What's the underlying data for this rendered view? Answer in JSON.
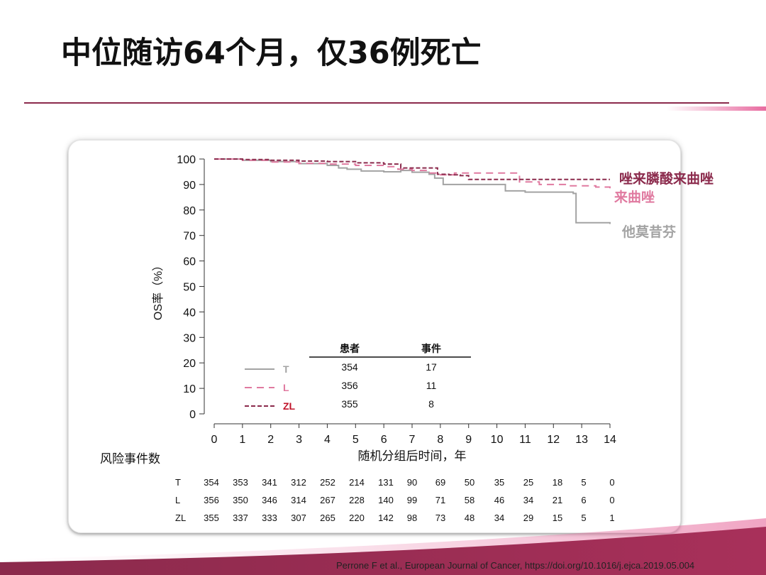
{
  "slide": {
    "title": "中位随访64个月，仅36例死亡",
    "citation": "Perrone F et al., European Journal of Cancer, https://doi.org/10.1016/j.ejca.2019.05.004"
  },
  "colors": {
    "T": "#a3a3a3",
    "L": "#e07aa0",
    "ZL": "#8b2a4c",
    "accent": "#8b2a4c",
    "zl_legend_text": "#c0142a"
  },
  "chart_data": {
    "type": "line",
    "xlabel": "随机分组后时间，年",
    "ylabel": "OS率（%）",
    "xlim": [
      0,
      14
    ],
    "ylim": [
      0,
      100
    ],
    "x_ticks": [
      "0",
      "1",
      "2",
      "3",
      "4",
      "5",
      "6",
      "7",
      "8",
      "9",
      "10",
      "11",
      "12",
      "13",
      "14"
    ],
    "y_ticks": [
      "0",
      "10",
      "20",
      "30",
      "40",
      "50",
      "60",
      "70",
      "80",
      "90",
      "100"
    ],
    "grid": false,
    "series": [
      {
        "key": "T",
        "name": "T",
        "style": "solid",
        "end_label": "他莫昔芬",
        "points": [
          [
            0,
            100
          ],
          [
            1,
            99.5
          ],
          [
            2,
            99
          ],
          [
            3,
            98.2
          ],
          [
            4,
            97.5
          ],
          [
            4.4,
            96.5
          ],
          [
            4.7,
            96
          ],
          [
            5.2,
            95.3
          ],
          [
            6,
            95
          ],
          [
            6.6,
            95.5
          ],
          [
            7,
            94.8
          ],
          [
            7.6,
            94
          ],
          [
            7.8,
            92.5
          ],
          [
            8.1,
            90
          ],
          [
            9,
            90
          ],
          [
            10.3,
            89.5
          ],
          [
            10.3,
            87.5
          ],
          [
            11,
            87
          ],
          [
            12.7,
            86.5
          ],
          [
            12.8,
            75
          ],
          [
            14,
            74.5
          ]
        ]
      },
      {
        "key": "L",
        "name": "L",
        "style": "dashed",
        "end_label": "来曲唑",
        "points": [
          [
            0,
            100
          ],
          [
            1,
            99.5
          ],
          [
            2,
            98.8
          ],
          [
            3,
            98.3
          ],
          [
            4,
            98
          ],
          [
            5,
            97.5
          ],
          [
            6,
            97
          ],
          [
            6.5,
            96
          ],
          [
            7,
            95.5
          ],
          [
            7.6,
            94.5
          ],
          [
            8,
            93.8
          ],
          [
            8.5,
            94.5
          ],
          [
            9.5,
            94.5
          ],
          [
            10.8,
            94
          ],
          [
            10.8,
            91
          ],
          [
            11.5,
            90
          ],
          [
            12.5,
            89.5
          ],
          [
            13.5,
            89
          ],
          [
            14,
            88.5
          ]
        ]
      },
      {
        "key": "ZL",
        "name": "ZL",
        "style": "dashdot",
        "end_label": "唑来膦酸来曲唑",
        "points": [
          [
            0,
            100
          ],
          [
            1,
            99.8
          ],
          [
            2,
            99.5
          ],
          [
            3,
            99.2
          ],
          [
            4,
            99
          ],
          [
            5,
            98.5
          ],
          [
            6,
            98
          ],
          [
            6.6,
            96.5
          ],
          [
            7,
            96.5
          ],
          [
            7.9,
            96
          ],
          [
            7.9,
            94
          ],
          [
            8.3,
            93.8
          ],
          [
            8.7,
            93.5
          ],
          [
            9,
            92
          ],
          [
            10,
            92
          ],
          [
            12,
            92
          ],
          [
            14,
            92
          ]
        ]
      }
    ],
    "legend_table": {
      "headers": [
        "患者",
        "事件"
      ],
      "rows": [
        {
          "key": "T",
          "label": "T",
          "patients": 354,
          "events": 17
        },
        {
          "key": "L",
          "label": "L",
          "patients": 356,
          "events": 11
        },
        {
          "key": "ZL",
          "label": "ZL",
          "patients": 355,
          "events": 8
        }
      ]
    },
    "risk_table": {
      "title": "风险事件数",
      "rows": [
        {
          "key": "T",
          "label": "T",
          "values": [
            354,
            353,
            341,
            312,
            252,
            214,
            131,
            90,
            69,
            50,
            35,
            25,
            18,
            5,
            0
          ]
        },
        {
          "key": "L",
          "label": "L",
          "values": [
            356,
            350,
            346,
            314,
            267,
            228,
            140,
            99,
            71,
            58,
            46,
            34,
            21,
            6,
            0
          ]
        },
        {
          "key": "ZL",
          "label": "ZL",
          "values": [
            355,
            337,
            333,
            307,
            265,
            220,
            142,
            98,
            73,
            48,
            34,
            29,
            15,
            5,
            1
          ]
        }
      ]
    }
  }
}
